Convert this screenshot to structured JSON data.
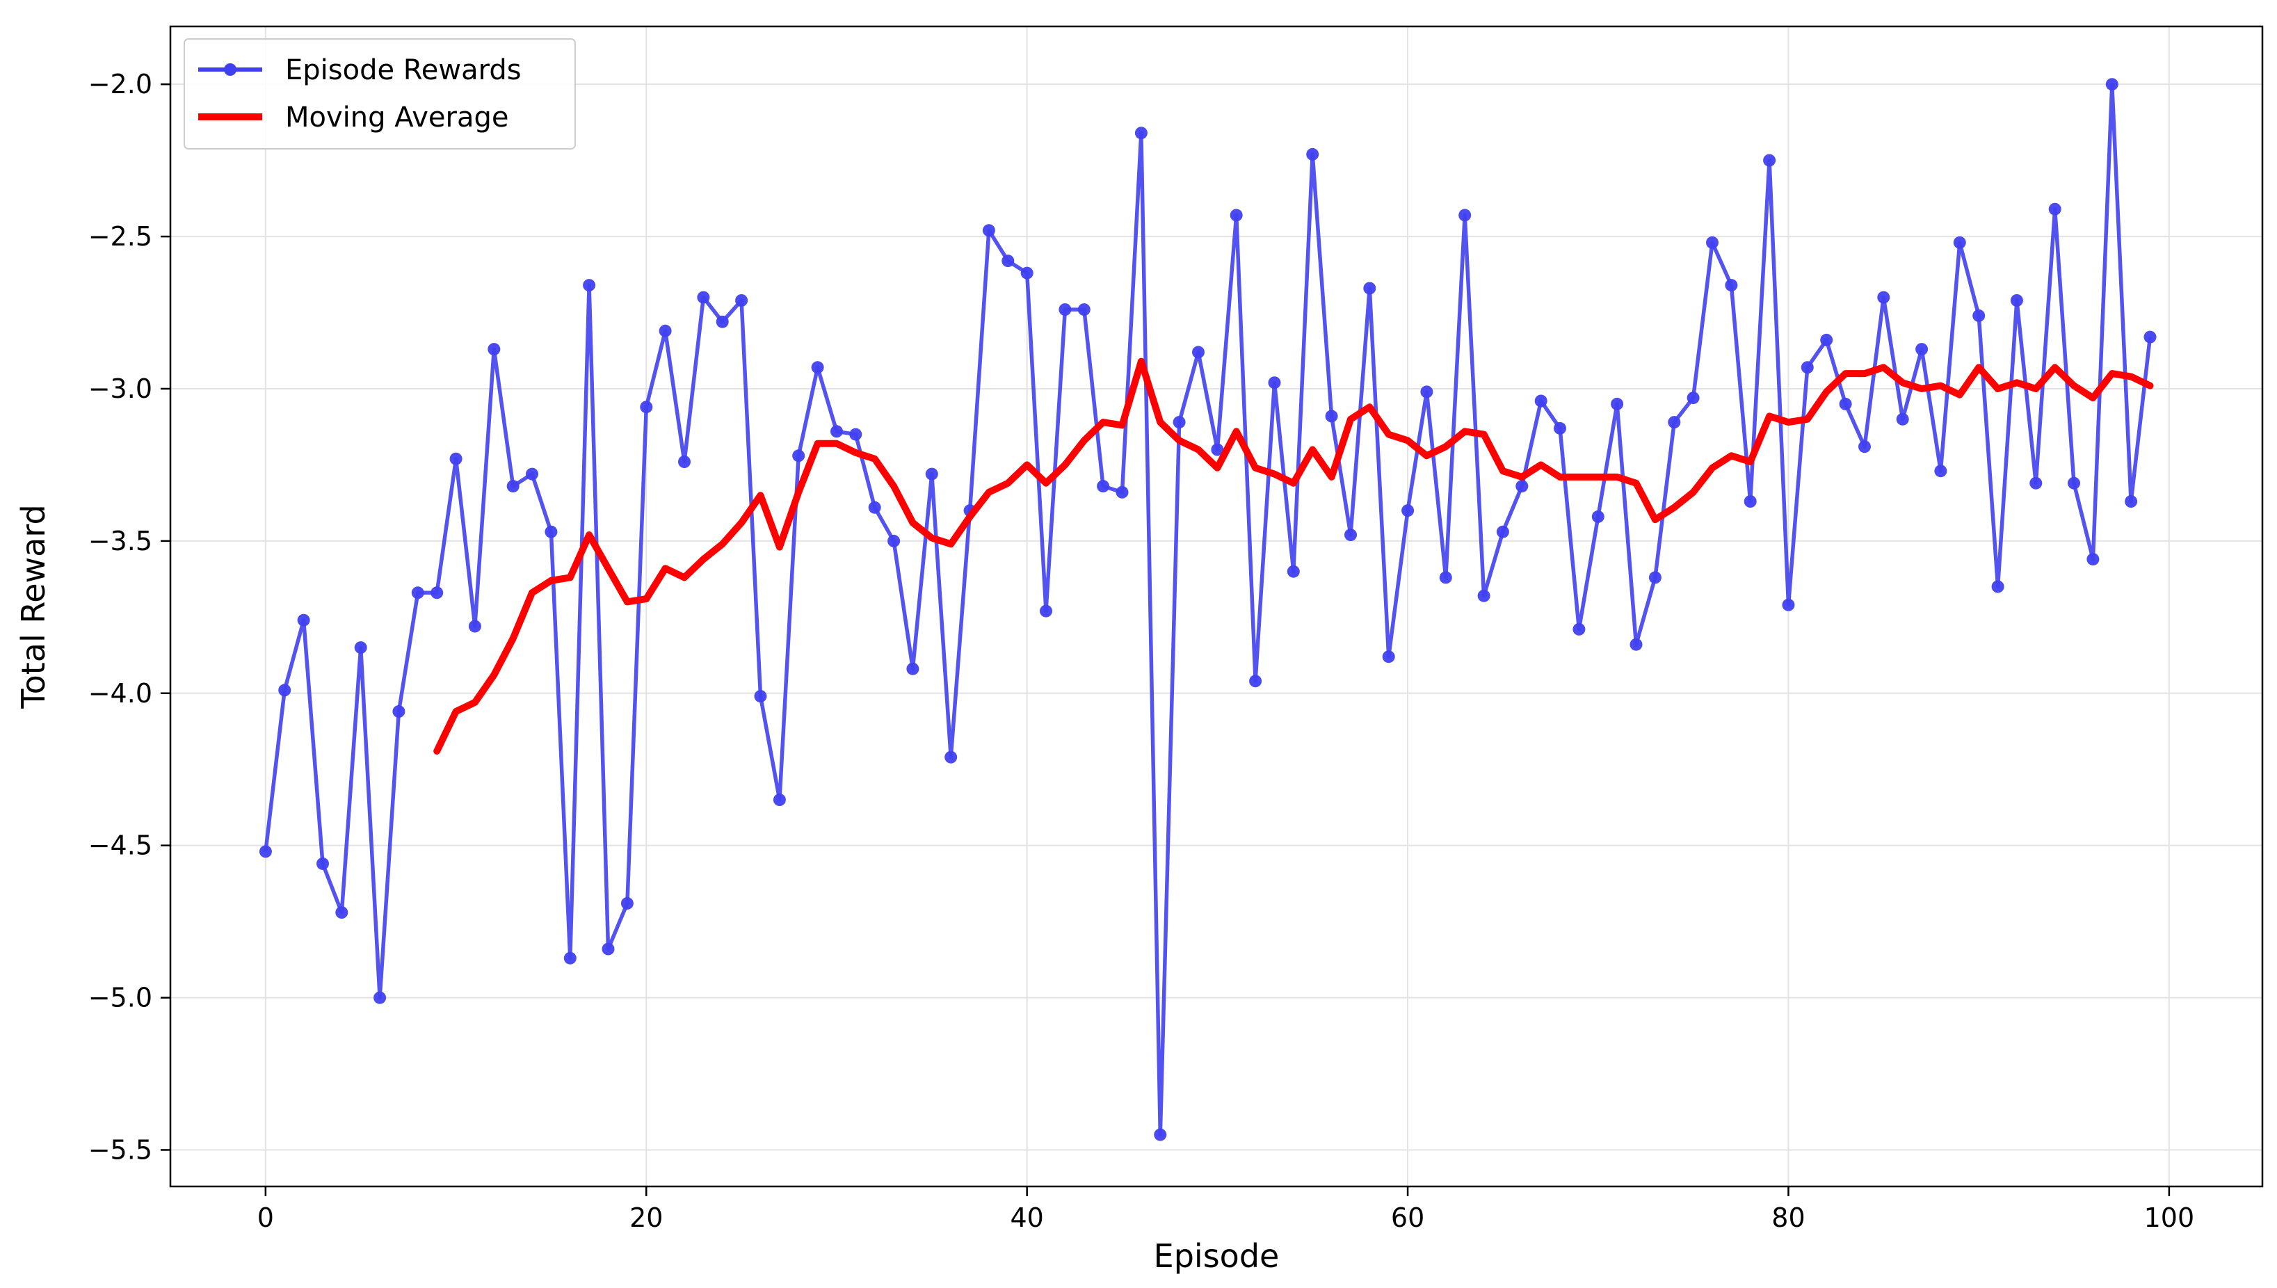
{
  "chart_data": {
    "type": "line",
    "title": "",
    "xlabel": "Episode",
    "ylabel": "Total Reward",
    "xlim": [
      -5,
      104.9
    ],
    "ylim": [
      -5.62,
      -1.81
    ],
    "grid": true,
    "legend_position": "top-left",
    "x_ticks": [
      0,
      20,
      40,
      60,
      80,
      100
    ],
    "y_ticks": [
      -2.0,
      -2.5,
      -3.0,
      -3.5,
      -4.0,
      -4.5,
      -5.0,
      -5.5
    ],
    "x_tick_labels": [
      "0",
      "20",
      "40",
      "60",
      "80",
      "100"
    ],
    "y_tick_labels": [
      "−2.0",
      "−2.5",
      "−3.0",
      "−3.5",
      "−4.0",
      "−4.5",
      "−5.0",
      "−5.5"
    ],
    "series": [
      {
        "name": "Episode Rewards",
        "color": "#4040f0",
        "marker": "circle",
        "x": [
          0,
          1,
          2,
          3,
          4,
          5,
          6,
          7,
          8,
          9,
          10,
          11,
          12,
          13,
          14,
          15,
          16,
          17,
          18,
          19,
          20,
          21,
          22,
          23,
          24,
          25,
          26,
          27,
          28,
          29,
          30,
          31,
          32,
          33,
          34,
          35,
          36,
          37,
          38,
          39,
          40,
          41,
          42,
          43,
          44,
          45,
          46,
          47,
          48,
          49,
          50,
          51,
          52,
          53,
          54,
          55,
          56,
          57,
          58,
          59,
          60,
          61,
          62,
          63,
          64,
          65,
          66,
          67,
          68,
          69,
          70,
          71,
          72,
          73,
          74,
          75,
          76,
          77,
          78,
          79,
          80,
          81,
          82,
          83,
          84,
          85,
          86,
          87,
          88,
          89,
          90,
          91,
          92,
          93,
          94,
          95,
          96,
          97,
          98,
          99
        ],
        "values": [
          -4.52,
          -3.99,
          -3.76,
          -4.56,
          -4.72,
          -3.85,
          -5.0,
          -4.06,
          -3.67,
          -3.67,
          -3.23,
          -3.78,
          -2.87,
          -3.32,
          -3.28,
          -3.47,
          -4.87,
          -2.66,
          -4.84,
          -4.69,
          -3.06,
          -2.81,
          -3.24,
          -2.7,
          -2.78,
          -2.71,
          -4.01,
          -4.35,
          -3.22,
          -2.93,
          -3.14,
          -3.15,
          -3.39,
          -3.5,
          -3.92,
          -3.28,
          -4.21,
          -3.4,
          -2.48,
          -2.58,
          -2.62,
          -3.73,
          -2.74,
          -2.74,
          -3.32,
          -3.34,
          -2.16,
          -5.45,
          -3.11,
          -2.88,
          -3.2,
          -2.43,
          -3.96,
          -2.98,
          -3.6,
          -2.23,
          -3.09,
          -3.48,
          -2.67,
          -3.88,
          -3.4,
          -3.01,
          -3.62,
          -2.43,
          -3.68,
          -3.47,
          -3.32,
          -3.04,
          -3.13,
          -3.79,
          -3.42,
          -3.05,
          -3.84,
          -3.62,
          -3.11,
          -3.03,
          -2.52,
          -2.66,
          -3.37,
          -2.25,
          -3.71,
          -2.93,
          -2.84,
          -3.05,
          -3.19,
          -2.7,
          -3.1,
          -2.87,
          -3.27,
          -2.52,
          -2.76,
          -3.65,
          -2.71,
          -3.31,
          -2.41,
          -3.31,
          -3.56,
          -2.0,
          -3.37,
          -2.83
        ]
      },
      {
        "name": "Moving Average",
        "color": "#ff0000",
        "x": [
          9,
          10,
          11,
          12,
          13,
          14,
          15,
          16,
          17,
          18,
          19,
          20,
          21,
          22,
          23,
          24,
          25,
          26,
          27,
          28,
          29,
          30,
          31,
          32,
          33,
          34,
          35,
          36,
          37,
          38,
          39,
          40,
          41,
          42,
          43,
          44,
          45,
          46,
          47,
          48,
          49,
          50,
          51,
          52,
          53,
          54,
          55,
          56,
          57,
          58,
          59,
          60,
          61,
          62,
          63,
          64,
          65,
          66,
          67,
          68,
          69,
          70,
          71,
          72,
          73,
          74,
          75,
          76,
          77,
          78,
          79,
          80,
          81,
          82,
          83,
          84,
          85,
          86,
          87,
          88,
          89,
          90,
          91,
          92,
          93,
          94,
          95,
          96,
          97,
          98,
          99
        ],
        "values": [
          -4.19,
          -4.06,
          -4.03,
          -3.94,
          -3.82,
          -3.67,
          -3.63,
          -3.62,
          -3.48,
          -3.59,
          -3.7,
          -3.69,
          -3.59,
          -3.62,
          -3.56,
          -3.51,
          -3.44,
          -3.35,
          -3.52,
          -3.34,
          -3.18,
          -3.18,
          -3.21,
          -3.23,
          -3.32,
          -3.44,
          -3.49,
          -3.51,
          -3.42,
          -3.34,
          -3.31,
          -3.25,
          -3.31,
          -3.25,
          -3.17,
          -3.11,
          -3.12,
          -2.91,
          -3.11,
          -3.17,
          -3.2,
          -3.26,
          -3.14,
          -3.26,
          -3.28,
          -3.31,
          -3.2,
          -3.29,
          -3.1,
          -3.06,
          -3.15,
          -3.17,
          -3.22,
          -3.19,
          -3.14,
          -3.15,
          -3.27,
          -3.29,
          -3.25,
          -3.29,
          -3.29,
          -3.29,
          -3.29,
          -3.31,
          -3.43,
          -3.39,
          -3.34,
          -3.26,
          -3.22,
          -3.24,
          -3.09,
          -3.11,
          -3.1,
          -3.01,
          -2.95,
          -2.95,
          -2.93,
          -2.98,
          -3.0,
          -2.99,
          -3.02,
          -2.93,
          -3.0,
          -2.98,
          -3.0,
          -2.93,
          -2.99,
          -3.03,
          -2.95,
          -2.96,
          -2.99
        ]
      }
    ]
  }
}
